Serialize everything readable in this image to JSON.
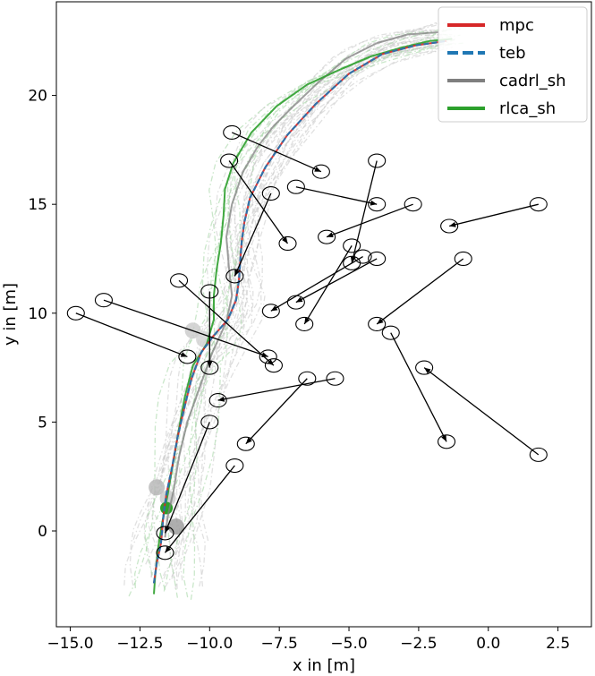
{
  "chart_data": {
    "type": "line",
    "title": "",
    "xlabel": "x in [m]",
    "ylabel": "y in [m]",
    "xlim": [
      -15.5,
      3.7
    ],
    "ylim": [
      -4.4,
      24.3
    ],
    "xticks": [
      -15.0,
      -12.5,
      -10.0,
      -7.5,
      -5.0,
      -2.5,
      0.0,
      2.5
    ],
    "xtick_labels": [
      "−15.0",
      "−12.5",
      "−10.0",
      "−7.5",
      "−5.0",
      "−2.5",
      "0.0",
      "2.5"
    ],
    "yticks": [
      0,
      5,
      10,
      15,
      20
    ],
    "ytick_labels": [
      "0",
      "5",
      "10",
      "15",
      "20"
    ],
    "grid": false,
    "legend_position": "top-right",
    "series": [
      {
        "name": "mpc",
        "color": "#d62728",
        "dash": "solid",
        "x": [
          -12.0,
          -11.9,
          -11.75,
          -11.7,
          -11.65,
          -11.55,
          -11.35,
          -11.15,
          -10.9,
          -10.65,
          -10.3,
          -9.9,
          -9.35,
          -9.05,
          -8.95,
          -8.9,
          -8.85,
          -8.75,
          -8.55,
          -8.0,
          -7.2,
          -6.2,
          -5.0,
          -3.8,
          -2.6,
          -1.5
        ],
        "y": [
          -2.4,
          -1.5,
          -0.6,
          0.1,
          0.8,
          1.7,
          2.9,
          4.3,
          5.7,
          7.0,
          8.2,
          8.9,
          9.7,
          10.6,
          11.5,
          12.4,
          13.3,
          14.2,
          15.3,
          16.7,
          18.2,
          19.6,
          21.0,
          21.9,
          22.3,
          22.5
        ]
      },
      {
        "name": "teb",
        "color": "#1f77b4",
        "dash": "dashed",
        "x": [
          -12.0,
          -11.9,
          -11.75,
          -11.7,
          -11.65,
          -11.55,
          -11.35,
          -11.15,
          -10.9,
          -10.65,
          -10.3,
          -9.9,
          -9.35,
          -9.05,
          -8.95,
          -8.9,
          -8.85,
          -8.75,
          -8.55,
          -8.0,
          -7.2,
          -6.2,
          -5.0,
          -3.8,
          -2.6,
          -1.5
        ],
        "y": [
          -2.4,
          -1.5,
          -0.6,
          0.1,
          0.8,
          1.7,
          2.9,
          4.3,
          5.7,
          7.0,
          8.2,
          8.9,
          9.7,
          10.6,
          11.5,
          12.4,
          13.3,
          14.2,
          15.3,
          16.7,
          18.2,
          19.6,
          21.0,
          21.9,
          22.3,
          22.5
        ]
      },
      {
        "name": "cadrl_sh",
        "color": "#7f7f7f",
        "dash": "solid",
        "x": [
          -11.6,
          -11.5,
          -11.3,
          -11.1,
          -10.8,
          -10.3,
          -9.9,
          -9.4,
          -9.2,
          -9.3,
          -9.4,
          -9.2,
          -8.8,
          -8.3,
          -7.7,
          -7.0,
          -6.1,
          -5.1,
          -4.0,
          -2.9,
          -1.8
        ],
        "y": [
          -0.3,
          0.7,
          1.8,
          3.4,
          5.0,
          6.8,
          8.2,
          9.6,
          10.8,
          12.0,
          13.5,
          15.0,
          16.5,
          17.6,
          18.6,
          19.5,
          20.6,
          21.7,
          22.4,
          22.8,
          22.9
        ]
      },
      {
        "name": "rlca_sh",
        "color": "#2ca02c",
        "dash": "solid",
        "x": [
          -12.0,
          -11.95,
          -11.85,
          -11.7,
          -11.5,
          -11.3,
          -11.1,
          -10.9,
          -10.6,
          -10.1,
          -9.85,
          -9.85,
          -9.75,
          -9.6,
          -9.5,
          -9.45,
          -9.15,
          -8.5,
          -7.6,
          -6.5,
          -5.3,
          -4.2,
          -3.1,
          -2.1,
          -1.3
        ],
        "y": [
          -2.9,
          -2.0,
          -0.8,
          0.4,
          1.7,
          3.2,
          4.7,
          6.1,
          7.6,
          8.6,
          9.7,
          10.8,
          12.0,
          13.2,
          14.5,
          15.7,
          16.9,
          18.3,
          19.5,
          20.5,
          21.2,
          21.8,
          22.2,
          22.5,
          22.6
        ]
      }
    ],
    "obstacles": [
      {
        "x": [
          -9.2,
          -6.0
        ],
        "y": [
          18.3,
          16.5
        ]
      },
      {
        "x": [
          -9.3,
          -7.2
        ],
        "y": [
          17.0,
          13.2
        ]
      },
      {
        "x": [
          -7.8,
          -9.1
        ],
        "y": [
          15.5,
          11.7
        ]
      },
      {
        "x": [
          -6.9,
          -4.0
        ],
        "y": [
          15.8,
          15.0
        ]
      },
      {
        "x": [
          -4.0,
          -4.9
        ],
        "y": [
          17.0,
          12.3
        ]
      },
      {
        "x": [
          -2.7,
          -5.8
        ],
        "y": [
          15.0,
          13.5
        ]
      },
      {
        "x": [
          1.8,
          -1.4
        ],
        "y": [
          15.0,
          14.0
        ]
      },
      {
        "x": [
          -4.9,
          -6.6
        ],
        "y": [
          13.1,
          9.5
        ]
      },
      {
        "x": [
          -4.5,
          -7.8
        ],
        "y": [
          12.6,
          10.1
        ]
      },
      {
        "x": [
          -4.0,
          -6.9
        ],
        "y": [
          12.5,
          10.5
        ]
      },
      {
        "x": [
          -0.9,
          -4.0
        ],
        "y": [
          12.5,
          9.5
        ]
      },
      {
        "x": [
          -13.8,
          -7.9
        ],
        "y": [
          10.6,
          8.0
        ]
      },
      {
        "x": [
          -14.8,
          -10.8
        ],
        "y": [
          10.0,
          8.0
        ]
      },
      {
        "x": [
          -11.1,
          -7.7
        ],
        "y": [
          11.5,
          7.6
        ]
      },
      {
        "x": [
          -10.0,
          -10.0
        ],
        "y": [
          11.0,
          7.5
        ]
      },
      {
        "x": [
          -3.5,
          -1.5
        ],
        "y": [
          9.1,
          4.1
        ]
      },
      {
        "x": [
          1.8,
          -2.3
        ],
        "y": [
          3.5,
          7.5
        ]
      },
      {
        "x": [
          -5.5,
          -9.7
        ],
        "y": [
          7.0,
          6.0
        ]
      },
      {
        "x": [
          -6.5,
          -8.7
        ],
        "y": [
          7.0,
          4.0
        ]
      },
      {
        "x": [
          -10.0,
          -11.6
        ],
        "y": [
          5.0,
          -0.1
        ]
      },
      {
        "x": [
          -9.1,
          -11.6
        ],
        "y": [
          3.0,
          -1.0
        ]
      }
    ]
  }
}
